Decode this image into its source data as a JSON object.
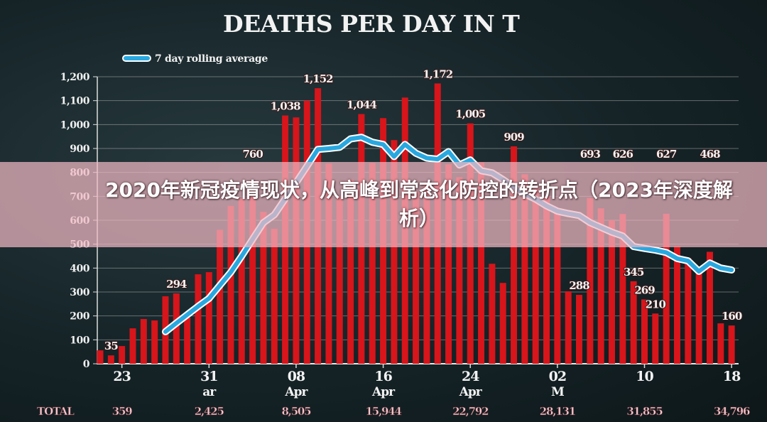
{
  "chart_data": {
    "type": "bar",
    "title": "DEATHS PER DAY IN T",
    "legend": {
      "label": "7 day rolling average",
      "placement": "top-left"
    },
    "ylim": [
      0,
      1200
    ],
    "yticks": [
      "0",
      "100",
      "200",
      "300",
      "400",
      "500",
      "600",
      "700",
      "800",
      "900",
      "1,000",
      "1,100",
      "1,200"
    ],
    "grid": true,
    "x_ticks": [
      {
        "day_index": 2,
        "day": "23",
        "month": ""
      },
      {
        "day_index": 10,
        "day": "31",
        "month": "ar"
      },
      {
        "day_index": 18,
        "day": "08",
        "month": "Apr"
      },
      {
        "day_index": 26,
        "day": "16",
        "month": "Apr"
      },
      {
        "day_index": 34,
        "day": "24",
        "month": "Apr"
      },
      {
        "day_index": 42,
        "day": "02",
        "month": "M"
      },
      {
        "day_index": 50,
        "day": "10",
        "month": ""
      },
      {
        "day_index": 58,
        "day": "18",
        "month": ""
      }
    ],
    "values": [
      56,
      35,
      74,
      148,
      187,
      181,
      282,
      294,
      193,
      374,
      383,
      560,
      660,
      690,
      760,
      635,
      564,
      1038,
      1030,
      1100,
      1152,
      837,
      700,
      770,
      1044,
      840,
      1027,
      935,
      1113,
      720,
      760,
      1172,
      834,
      780,
      1005,
      842,
      418,
      338,
      909,
      792,
      740,
      700,
      640,
      303,
      288,
      693,
      650,
      600,
      626,
      345,
      269,
      210,
      627,
      490,
      442,
      386,
      468,
      169,
      160
    ],
    "rolling_average": {
      "start_index": 6,
      "values": [
        134,
        170,
        205,
        240,
        273,
        328,
        383,
        450,
        520,
        590,
        623,
        690,
        757,
        826,
        896,
        900,
        905,
        940,
        947,
        926,
        917,
        866,
        917,
        880,
        860,
        855,
        887,
        831,
        852,
        807,
        798,
        770,
        739,
        710,
        688,
        660,
        638,
        628,
        620,
        590,
        570,
        550,
        534,
        490,
        482,
        475,
        465,
        440,
        430,
        386,
        421,
        400,
        392
      ]
    },
    "data_labels": [
      {
        "index": 1,
        "text": "35"
      },
      {
        "index": 7,
        "text": "294"
      },
      {
        "index": 14,
        "text": "760"
      },
      {
        "index": 17,
        "text": "1,038"
      },
      {
        "index": 20,
        "text": "1,152"
      },
      {
        "index": 24,
        "text": "1,044"
      },
      {
        "index": 31,
        "text": "1,172"
      },
      {
        "index": 34,
        "text": "1,005"
      },
      {
        "index": 38,
        "text": "909"
      },
      {
        "index": 44,
        "text": "288"
      },
      {
        "index": 45,
        "text": "693"
      },
      {
        "index": 48,
        "text": "626"
      },
      {
        "index": 49,
        "text": "345"
      },
      {
        "index": 50,
        "text": "269"
      },
      {
        "index": 51,
        "text": "210"
      },
      {
        "index": 52,
        "text": "627"
      },
      {
        "index": 56,
        "text": "468"
      },
      {
        "index": 58,
        "text": "160"
      }
    ],
    "totals": {
      "label": "TOTAL",
      "values": [
        "359",
        "2,425",
        "8,505",
        "15,944",
        "22,792",
        "28,131",
        "31,855",
        "34,796"
      ]
    },
    "colors": {
      "bar": "#d7151b",
      "line": "#29a8df",
      "line_outline": "#ffffff",
      "text": "#f0f0f0",
      "total_text": "#f2c9cf"
    }
  },
  "banner": {
    "text": "2020年新冠疫情现状，从高峰到常态化防控的转折点（2023年深度解析）"
  }
}
